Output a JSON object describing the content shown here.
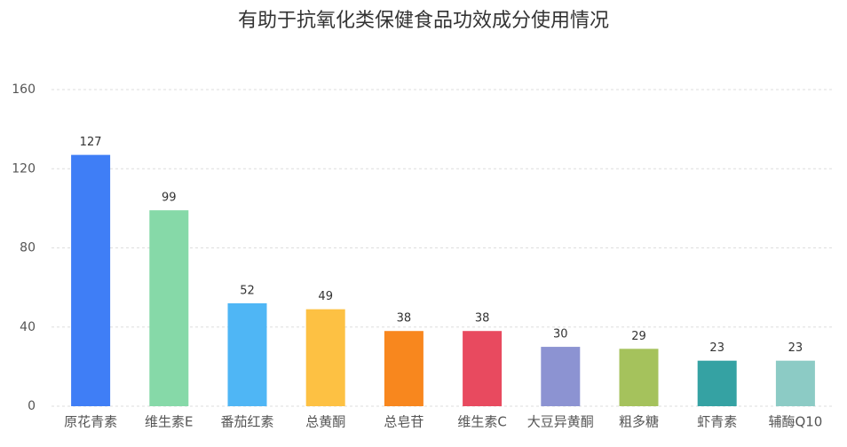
{
  "chart_data": {
    "type": "bar",
    "title": "有助于抗氧化类保健食品功效成分使用情况",
    "categories": [
      "原花青素",
      "维生素E",
      "番茄红素",
      "总黄酮",
      "总皂苷",
      "维生素C",
      "大豆异黄酮",
      "粗多糖",
      "虾青素",
      "辅酶Q10"
    ],
    "values": [
      127,
      99,
      52,
      49,
      38,
      38,
      30,
      29,
      23,
      23
    ],
    "colors": [
      "#3f7ef6",
      "#86d9a8",
      "#4fb6f5",
      "#fdc143",
      "#f8871e",
      "#e84a5f",
      "#8c93d2",
      "#a5c25c",
      "#35a2a3",
      "#8ccbc5"
    ],
    "ylim": [
      0,
      160
    ],
    "yticks": [
      0,
      40,
      80,
      120,
      160
    ],
    "grid": true
  }
}
